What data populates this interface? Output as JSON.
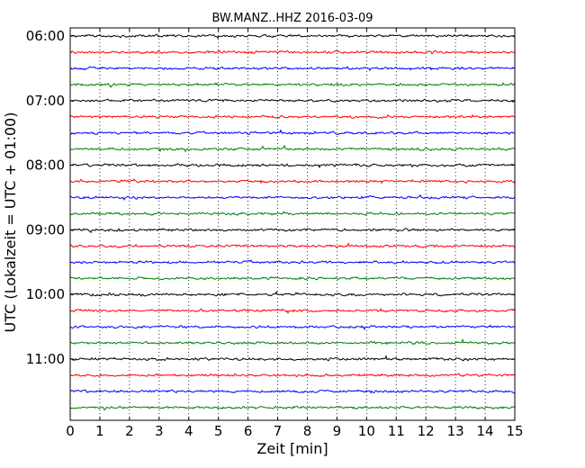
{
  "chart_data": {
    "type": "line",
    "title": "BW.MANZ..HHZ 2016-03-09",
    "xlabel": "Zeit  [min]",
    "ylabel": "UTC (Lokalzeit = UTC + 01:00)",
    "xlim": [
      0,
      15
    ],
    "x_ticks": [
      "0",
      "1",
      "2",
      "3",
      "4",
      "5",
      "6",
      "7",
      "8",
      "9",
      "10",
      "11",
      "12",
      "13",
      "14",
      "15"
    ],
    "y_tick_labels": [
      "06:00",
      "07:00",
      "08:00",
      "09:00",
      "10:00",
      "11:00"
    ],
    "y_tick_trace_index": [
      0,
      4,
      8,
      12,
      16,
      20
    ],
    "grid": "vertical-dotted",
    "series": [
      {
        "start": "06:00",
        "color": "#000000"
      },
      {
        "start": "06:15",
        "color": "#ff0000"
      },
      {
        "start": "06:30",
        "color": "#0000ff"
      },
      {
        "start": "06:45",
        "color": "#008000"
      },
      {
        "start": "07:00",
        "color": "#000000"
      },
      {
        "start": "07:15",
        "color": "#ff0000"
      },
      {
        "start": "07:30",
        "color": "#0000ff"
      },
      {
        "start": "07:45",
        "color": "#008000"
      },
      {
        "start": "08:00",
        "color": "#000000"
      },
      {
        "start": "08:15",
        "color": "#ff0000"
      },
      {
        "start": "08:30",
        "color": "#0000ff"
      },
      {
        "start": "08:45",
        "color": "#008000"
      },
      {
        "start": "09:00",
        "color": "#000000"
      },
      {
        "start": "09:15",
        "color": "#ff0000"
      },
      {
        "start": "09:30",
        "color": "#0000ff"
      },
      {
        "start": "09:45",
        "color": "#008000"
      },
      {
        "start": "10:00",
        "color": "#000000"
      },
      {
        "start": "10:15",
        "color": "#ff0000"
      },
      {
        "start": "10:30",
        "color": "#0000ff"
      },
      {
        "start": "10:45",
        "color": "#008000"
      },
      {
        "start": "11:00",
        "color": "#000000"
      },
      {
        "start": "11:15",
        "color": "#ff0000"
      },
      {
        "start": "11:30",
        "color": "#0000ff"
      },
      {
        "start": "11:45",
        "color": "#008000"
      }
    ]
  }
}
